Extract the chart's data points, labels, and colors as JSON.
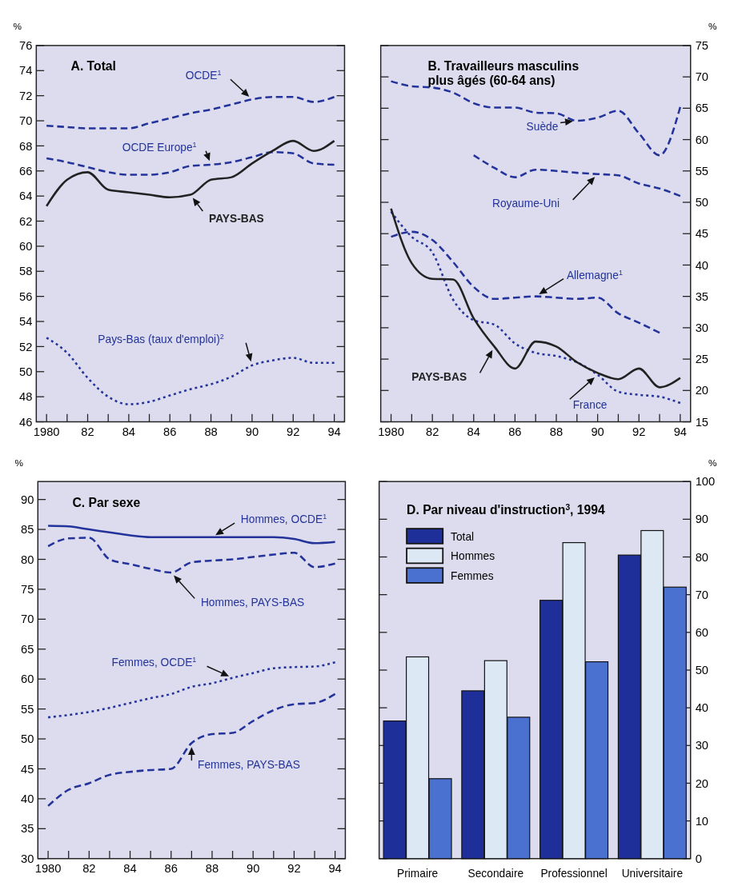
{
  "chart_data": [
    {
      "type": "line",
      "title": "A.  Total",
      "ylabel": "%",
      "x": [
        1980,
        1981,
        1982,
        1983,
        1984,
        1985,
        1986,
        1987,
        1988,
        1989,
        1990,
        1991,
        1992,
        1993,
        1994
      ],
      "xlim": [
        1979.5,
        1994.5
      ],
      "xticks": [
        {
          "value": 1980,
          "label": "1980"
        },
        {
          "value": 1981,
          "label": null
        },
        {
          "value": 1982,
          "label": "82"
        },
        {
          "value": 1983,
          "label": null
        },
        {
          "value": 1984,
          "label": "84"
        },
        {
          "value": 1985,
          "label": null
        },
        {
          "value": 1986,
          "label": "86"
        },
        {
          "value": 1987,
          "label": null
        },
        {
          "value": 1988,
          "label": "88"
        },
        {
          "value": 1989,
          "label": null
        },
        {
          "value": 1990,
          "label": "90"
        },
        {
          "value": 1991,
          "label": null
        },
        {
          "value": 1992,
          "label": "92"
        },
        {
          "value": 1993,
          "label": null
        },
        {
          "value": 1994,
          "label": "94"
        }
      ],
      "ylim": [
        46,
        76
      ],
      "yticks": [
        46,
        48,
        50,
        52,
        54,
        56,
        58,
        60,
        62,
        64,
        66,
        68,
        70,
        72,
        74,
        76
      ],
      "series": [
        {
          "name": "OCDE$^{1}$",
          "color": "#24339a",
          "line_style": "dashed",
          "values": [
            69.6,
            69.5,
            69.4,
            69.4,
            69.4,
            69.8,
            70.2,
            70.6,
            70.9,
            71.3,
            71.7,
            71.9,
            71.9,
            71.5,
            71.9
          ]
        },
        {
          "name": "OCDE Europe$^{1}$",
          "color": "#24339a",
          "line_style": "dashed",
          "values": [
            67.0,
            66.7,
            66.3,
            65.9,
            65.7,
            65.7,
            65.9,
            66.4,
            66.5,
            66.7,
            67.1,
            67.5,
            67.4,
            66.6,
            66.5
          ]
        },
        {
          "name": "PAYS-BAS",
          "color": "#222222",
          "line_style": "solid",
          "values": [
            63.2,
            65.3,
            65.9,
            64.5,
            64.3,
            64.1,
            63.9,
            64.1,
            65.3,
            65.5,
            66.6,
            67.6,
            68.4,
            67.6,
            68.4
          ]
        },
        {
          "name": "Pays-Bas (taux d'emploi)$^{2}$",
          "color": "#24339a",
          "line_style": "dotted",
          "values": [
            52.7,
            51.5,
            49.5,
            48.0,
            47.4,
            47.6,
            48.1,
            48.6,
            49.0,
            49.6,
            50.5,
            50.9,
            51.1,
            50.7,
            50.7
          ]
        }
      ]
    },
    {
      "type": "line",
      "title": "B.  Travailleurs masculins plus âgés (60-64 ans)",
      "ylabel": "%",
      "x": [
        1980,
        1981,
        1982,
        1983,
        1984,
        1985,
        1986,
        1987,
        1988,
        1989,
        1990,
        1991,
        1992,
        1993,
        1994
      ],
      "xlim": [
        1979.5,
        1994.5
      ],
      "xticks": [
        {
          "value": 1980,
          "label": "1980"
        },
        {
          "value": 1981,
          "label": null
        },
        {
          "value": 1982,
          "label": "82"
        },
        {
          "value": 1983,
          "label": null
        },
        {
          "value": 1984,
          "label": "84"
        },
        {
          "value": 1985,
          "label": null
        },
        {
          "value": 1986,
          "label": "86"
        },
        {
          "value": 1987,
          "label": null
        },
        {
          "value": 1988,
          "label": "88"
        },
        {
          "value": 1989,
          "label": null
        },
        {
          "value": 1990,
          "label": "90"
        },
        {
          "value": 1991,
          "label": null
        },
        {
          "value": 1992,
          "label": "92"
        },
        {
          "value": 1993,
          "label": null
        },
        {
          "value": 1994,
          "label": "94"
        }
      ],
      "ylim": [
        15,
        75
      ],
      "yticks": [
        15,
        20,
        25,
        30,
        35,
        40,
        45,
        50,
        55,
        60,
        65,
        70,
        75
      ],
      "series": [
        {
          "name": "Suède",
          "color": "#24339a",
          "line_style": "dashed",
          "values": [
            69.3,
            68.5,
            68.3,
            67.5,
            65.8,
            65.1,
            65.1,
            64.3,
            64.2,
            63.0,
            63.5,
            64.6,
            61.0,
            57.5,
            65.2
          ]
        },
        {
          "name": "Royaume-Uni",
          "color": "#24339a",
          "line_style": "dashed",
          "values": [
            null,
            null,
            null,
            null,
            57.5,
            55.5,
            54.0,
            55.2,
            55.0,
            54.7,
            54.5,
            54.3,
            53.0,
            52.2,
            51.0
          ]
        },
        {
          "name": "Allemagne$^{1}$",
          "color": "#24339a",
          "line_style": "dashed",
          "values": [
            44.5,
            45.3,
            44.0,
            40.5,
            36.5,
            34.6,
            34.8,
            35.0,
            34.8,
            34.6,
            34.8,
            32.3,
            30.8,
            29.2,
            null
          ]
        },
        {
          "name": "France",
          "color": "#24339a",
          "line_style": "dotted",
          "values": [
            48.5,
            44.5,
            42.0,
            34.5,
            31.2,
            30.5,
            27.5,
            26.0,
            25.5,
            24.5,
            22.5,
            19.8,
            19.3,
            19.0,
            18.0
          ]
        },
        {
          "name": "PAYS-BAS",
          "color": "#222222",
          "line_style": "solid",
          "values": [
            49.0,
            40.3,
            37.8,
            37.7,
            31.5,
            27.0,
            23.5,
            27.8,
            27.0,
            24.5,
            22.8,
            21.8,
            23.5,
            20.5,
            22.0
          ]
        }
      ]
    },
    {
      "type": "line",
      "title": "C.  Par sexe",
      "ylabel": "%",
      "x": [
        1980,
        1981,
        1982,
        1983,
        1984,
        1985,
        1986,
        1987,
        1988,
        1989,
        1990,
        1991,
        1992,
        1993,
        1994
      ],
      "xlim": [
        1979.5,
        1994.5
      ],
      "xticks": [
        {
          "value": 1980,
          "label": "1980"
        },
        {
          "value": 1981,
          "label": null
        },
        {
          "value": 1982,
          "label": "82"
        },
        {
          "value": 1983,
          "label": null
        },
        {
          "value": 1984,
          "label": "84"
        },
        {
          "value": 1985,
          "label": null
        },
        {
          "value": 1986,
          "label": "86"
        },
        {
          "value": 1987,
          "label": null
        },
        {
          "value": 1988,
          "label": "88"
        },
        {
          "value": 1989,
          "label": null
        },
        {
          "value": 1990,
          "label": "90"
        },
        {
          "value": 1991,
          "label": null
        },
        {
          "value": 1992,
          "label": "92"
        },
        {
          "value": 1993,
          "label": null
        },
        {
          "value": 1994,
          "label": "94"
        }
      ],
      "ylim": [
        30,
        93
      ],
      "yticks": [
        30,
        35,
        40,
        45,
        50,
        55,
        60,
        65,
        70,
        75,
        80,
        85,
        90
      ],
      "series": [
        {
          "name": "Hommes, OCDE$^{1}$",
          "color": "#24339a",
          "line_style": "solid",
          "values": [
            85.6,
            85.5,
            85.0,
            84.5,
            84.0,
            83.7,
            83.7,
            83.7,
            83.7,
            83.7,
            83.7,
            83.7,
            83.4,
            82.7,
            82.9
          ]
        },
        {
          "name": "Hommes, PAYS-BAS",
          "color": "#24339a",
          "line_style": "dashed",
          "values": [
            82.2,
            83.5,
            83.6,
            80.0,
            79.2,
            78.4,
            77.8,
            79.5,
            79.8,
            80.0,
            80.4,
            80.8,
            81.1,
            78.7,
            79.3
          ]
        },
        {
          "name": "Femmes, OCDE$^{1}$",
          "color": "#24339a",
          "line_style": "dotted",
          "values": [
            53.6,
            54.0,
            54.5,
            55.2,
            56.0,
            56.8,
            57.5,
            58.7,
            59.3,
            60.2,
            61.0,
            61.8,
            62.0,
            62.1,
            62.8
          ]
        },
        {
          "name": "Femmes, PAYS-BAS",
          "color": "#24339a",
          "line_style": "dashed",
          "values": [
            38.8,
            41.5,
            42.6,
            44.0,
            44.5,
            44.8,
            45.0,
            49.3,
            50.8,
            51.0,
            53.0,
            54.8,
            55.8,
            56.0,
            57.5
          ]
        }
      ]
    },
    {
      "type": "bar",
      "title": "D.  Par niveau d'instruction$^{3}$, 1994",
      "ylabel": "%",
      "categories": [
        "Primaire",
        "Secondaire",
        "Professionnel",
        "Universitaire"
      ],
      "ylim": [
        0,
        100
      ],
      "yticks": [
        0,
        10,
        20,
        30,
        40,
        50,
        60,
        70,
        80,
        90,
        100
      ],
      "legend": "top left",
      "series": [
        {
          "name": "Total",
          "color": "#1f2f9a",
          "values": [
            36.5,
            44.5,
            68.5,
            80.5
          ]
        },
        {
          "name": "Hommes",
          "color": "#dde8f5",
          "values": [
            53.5,
            52.5,
            83.8,
            87.0
          ]
        },
        {
          "name": "Femmes",
          "color": "#4a70d0",
          "values": [
            21.2,
            37.5,
            52.2,
            72.0
          ]
        }
      ]
    }
  ]
}
